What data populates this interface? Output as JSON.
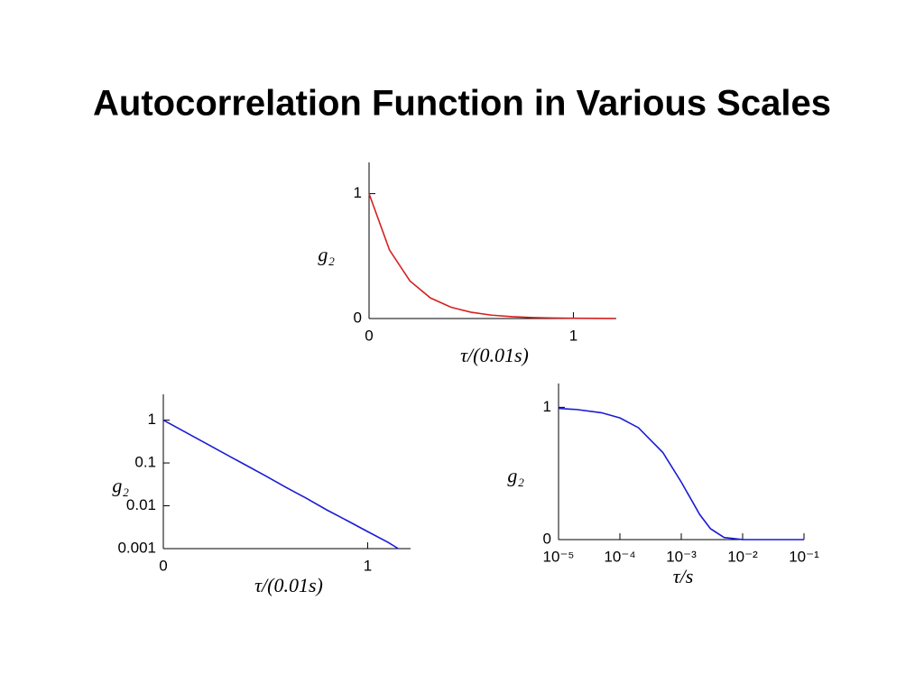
{
  "title": "Autocorrelation Function in Various Scales",
  "chart_data": [
    {
      "type": "line",
      "color": "#d62020",
      "xlabel": "τ/(0.01s)",
      "ylabel": "g₂",
      "x": [
        0,
        0.1,
        0.2,
        0.3,
        0.4,
        0.5,
        0.6,
        0.7,
        0.8,
        0.9,
        1.0,
        1.1,
        1.2
      ],
      "values": [
        1,
        0.549,
        0.301,
        0.165,
        0.091,
        0.05,
        0.027,
        0.015,
        0.008,
        0.0045,
        0.0025,
        0.0014,
        0.00075
      ],
      "xlim": [
        0,
        1.21
      ],
      "ylim": [
        0,
        1.25
      ],
      "xticks": [
        0,
        1
      ],
      "yticks": [
        0,
        1
      ]
    },
    {
      "type": "line",
      "color": "#1a1ad6",
      "xlabel": "τ/(0.01s)",
      "ylabel": "g₂",
      "yscale": "log",
      "x": [
        0,
        0.1,
        0.2,
        0.3,
        0.4,
        0.5,
        0.6,
        0.7,
        0.8,
        0.9,
        1.0,
        1.1,
        1.15
      ],
      "values": [
        1,
        0.549,
        0.301,
        0.165,
        0.091,
        0.05,
        0.027,
        0.015,
        0.008,
        0.0045,
        0.0025,
        0.0014,
        0.001
      ],
      "xlim": [
        0,
        1.21
      ],
      "ylim": [
        0.001,
        4
      ],
      "xticks": [
        0,
        1
      ],
      "yticks": [
        1,
        0.1,
        0.01,
        0.001
      ]
    },
    {
      "type": "line",
      "color": "#1a1ad6",
      "xlabel": "τ/s",
      "ylabel": "g₂",
      "xscale": "log",
      "x": [
        1e-05,
        2e-05,
        5e-05,
        0.0001,
        0.0002,
        0.0005,
        0.001,
        0.002,
        0.003,
        0.005,
        0.01,
        0.02,
        0.05,
        0.1
      ],
      "values": [
        0.992,
        0.983,
        0.959,
        0.92,
        0.846,
        0.659,
        0.435,
        0.189,
        0.082,
        0.0155,
        0.00024,
        0,
        0,
        0
      ],
      "xlim": [
        1e-05,
        0.1
      ],
      "ylim": [
        0,
        1.18
      ],
      "xticks": [
        {
          "value": 1e-05,
          "label": "10⁻⁵"
        },
        {
          "value": 0.0001,
          "label": "10⁻⁴"
        },
        {
          "value": 0.001,
          "label": "10⁻³"
        },
        {
          "value": 0.01,
          "label": "10⁻²"
        },
        {
          "value": 0.1,
          "label": "10⁻¹"
        }
      ],
      "yticks": [
        0,
        1
      ]
    }
  ]
}
